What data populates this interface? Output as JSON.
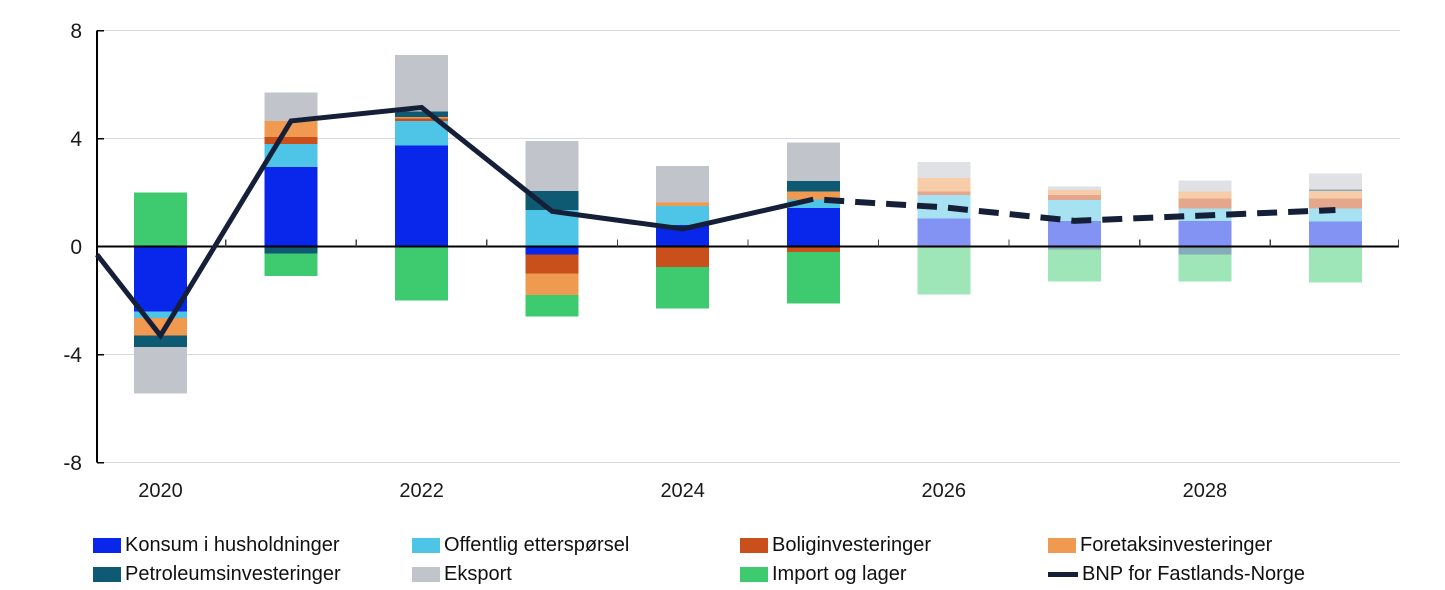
{
  "page": {
    "background": "#ffffff"
  },
  "chart_data": {
    "type": "bar",
    "variant": "stacked-bars-with-line-overlay",
    "title": "",
    "ylim": [
      -8,
      8
    ],
    "y_ticks": [
      8,
      4,
      0,
      -4,
      -8
    ],
    "y_gridlines": [
      8,
      4,
      -4,
      -8
    ],
    "grid": "horizontal-only",
    "legend_position": "bottom",
    "categories": [
      "2020",
      "2021",
      "2022",
      "2023",
      "2024",
      "2025",
      "2026",
      "2027",
      "2028",
      "2029"
    ],
    "x_tick_labels": [
      {
        "label": "2020",
        "category_index": 0
      },
      {
        "label": "2022",
        "category_index": 2
      },
      {
        "label": "2024",
        "category_index": 4
      },
      {
        "label": "2026",
        "category_index": 6
      },
      {
        "label": "2028",
        "category_index": 8
      }
    ],
    "forecast_from_category": "2026",
    "forecast_bar_opacity": 0.5,
    "series": [
      {
        "name": "Konsum i husholdninger",
        "color": "#0827ea",
        "values": [
          -2.4,
          2.95,
          3.75,
          -0.3,
          0.8,
          1.43,
          1.03,
          0.94,
          0.94,
          0.93
        ]
      },
      {
        "name": "Offentlig etterspørsel",
        "color": "#4ec5e6",
        "values": [
          -0.25,
          0.85,
          0.9,
          1.35,
          0.7,
          0.31,
          0.87,
          0.79,
          0.47,
          0.48
        ]
      },
      {
        "name": "Boliginvesteringer",
        "color": "#c94f1b",
        "values": [
          0.0,
          0.25,
          0.1,
          -0.7,
          -0.75,
          -0.21,
          0.13,
          0.17,
          0.37,
          0.37
        ]
      },
      {
        "name": "Foretaksinvesteringer",
        "color": "#f09951",
        "values": [
          -0.65,
          0.6,
          0.05,
          -0.8,
          0.13,
          0.29,
          0.5,
          0.2,
          0.25,
          0.27
        ]
      },
      {
        "name": "Petroleumsinvesteringer",
        "color": "#0e5a73",
        "values": [
          -0.43,
          -0.25,
          0.2,
          0.7,
          0.0,
          0.4,
          0.0,
          -0.12,
          -0.3,
          0.07
        ]
      },
      {
        "name": "Eksport",
        "color": "#c2c4cc",
        "values": [
          -1.71,
          1.05,
          2.1,
          1.85,
          1.35,
          1.43,
          0.6,
          0.13,
          0.41,
          0.59
        ]
      },
      {
        "name": "Import og lager",
        "color": "#3ecb70",
        "values": [
          2.0,
          -0.85,
          -2.0,
          -0.8,
          -1.55,
          -1.91,
          -1.77,
          -1.18,
          -1.0,
          -1.33
        ]
      }
    ],
    "line_series": {
      "name": "BNP for Fastlands-Norge",
      "color": "#161f38",
      "values": [
        -3.3,
        4.65,
        5.15,
        1.3,
        0.65,
        1.75,
        1.45,
        0.95,
        1.15,
        1.35
      ],
      "dashed_from_category": "2025",
      "start_at_axis_value": -0.3
    }
  },
  "legend": {
    "rows": 2,
    "columns": 4,
    "items": [
      {
        "label": "Konsum i husholdninger",
        "type": "box",
        "color": "#0827ea"
      },
      {
        "label": "Offentlig etterspørsel",
        "type": "box",
        "color": "#4ec5e6"
      },
      {
        "label": "Boliginvesteringer",
        "type": "box",
        "color": "#c94f1b"
      },
      {
        "label": "Foretaksinvesteringer",
        "type": "box",
        "color": "#f09951"
      },
      {
        "label": "Petroleumsinvesteringer",
        "type": "box",
        "color": "#0e5a73"
      },
      {
        "label": "Eksport",
        "type": "box",
        "color": "#c2c4cc"
      },
      {
        "label": "Import og lager",
        "type": "box",
        "color": "#3ecb70"
      },
      {
        "label": "BNP for Fastlands-Norge",
        "type": "line",
        "color": "#161f38"
      }
    ]
  },
  "axis_style": {
    "gridline_color": "#d9d9d9",
    "axis_color": "#000000",
    "tick_color": "#444444",
    "label_color": "#1a1a1a"
  }
}
